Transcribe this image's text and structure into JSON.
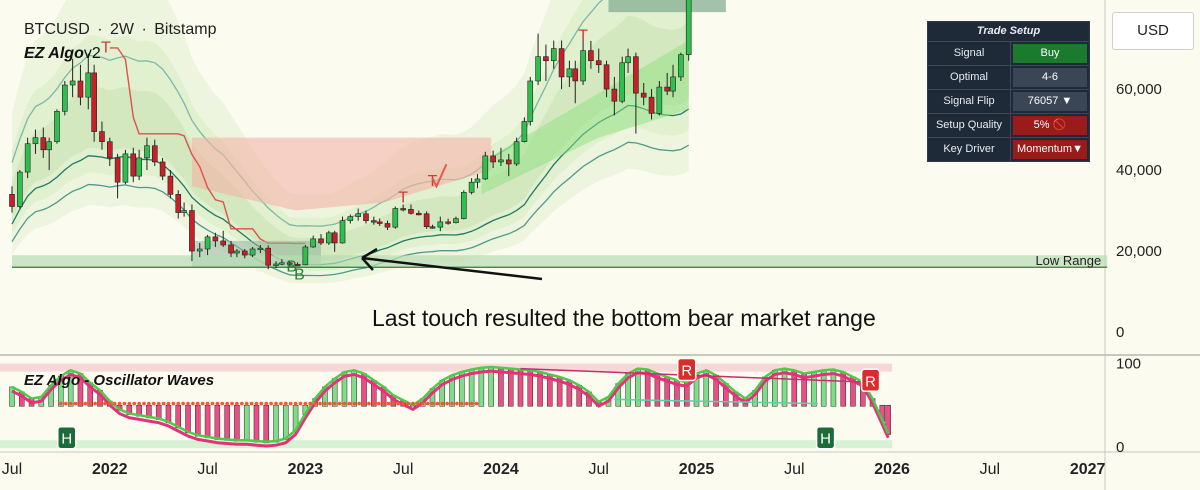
{
  "chart_data": {
    "type": "candlestick",
    "symbol": "BTCUSD",
    "interval": "2W",
    "exchange": "Bitstamp",
    "header_separator": "·",
    "indicator_name": "EZ Algo v2",
    "indicator_name_main": "EZ Algo",
    "indicator_name_suffix": "v2",
    "oscillator_title": "EZ Algo - Oscillator Waves",
    "currency_label": "USD",
    "price_axis": {
      "ticks": [
        0,
        20000,
        40000,
        60000
      ],
      "tick_labels": [
        "0",
        "20,000",
        "40,000",
        "60,000"
      ],
      "ylim": [
        0,
        82000
      ]
    },
    "osc_axis": {
      "ticks": [
        0,
        100
      ],
      "tick_labels": [
        "0",
        "100"
      ],
      "ylim": [
        -5,
        108
      ]
    },
    "time_axis": {
      "labels": [
        "Jul",
        "2022",
        "Jul",
        "2023",
        "Jul",
        "2024",
        "Jul",
        "2025",
        "Jul",
        "2026",
        "Jul",
        "2027"
      ],
      "positions": [
        2021.5,
        2022.0,
        2022.5,
        2023.0,
        2023.5,
        2024.0,
        2024.5,
        2025.0,
        2025.5,
        2026.0,
        2026.5,
        2027.0
      ],
      "xlim": [
        2021.5,
        2027.15
      ]
    },
    "low_range": {
      "label": "Low Range",
      "price": 16000,
      "x_start": 2021.5,
      "x_end": 2027.1
    },
    "annotation": {
      "text": "Last touch resulted the bottom bear market range"
    },
    "signals": [
      {
        "label": "B",
        "time": 2022.93,
        "price": 15000
      },
      {
        "label": "B",
        "time": 2022.97,
        "price": 13000
      },
      {
        "label": "T",
        "time": 2023.5,
        "price": 32000
      },
      {
        "label": "T",
        "time": 2023.65,
        "price": 36000
      },
      {
        "label": "T",
        "time": 2024.42,
        "price": 72000
      },
      {
        "label": "T",
        "time": 2021.98,
        "price": 69000
      }
    ],
    "osc_signals": [
      {
        "label": "H",
        "time": 2021.78,
        "value": 11
      },
      {
        "label": "H",
        "time": 2025.66,
        "value": 11
      },
      {
        "label": "R",
        "time": 2024.95,
        "value": 93
      },
      {
        "label": "R",
        "time": 2025.89,
        "value": 80
      }
    ],
    "trade_setup": {
      "title": "Trade Setup",
      "rows": [
        {
          "label": "Signal",
          "value": "Buy",
          "style": "buy"
        },
        {
          "label": "Optimal",
          "value": "4-6",
          "style": "dark"
        },
        {
          "label": "Signal Flip",
          "value": "76057 ▼",
          "style": "dark"
        },
        {
          "label": "Setup Quality",
          "value": "5% 🚫",
          "style": "red"
        },
        {
          "label": "Key Driver",
          "value": "Momentum▼",
          "style": "red"
        }
      ]
    },
    "candles": [
      {
        "t": 2021.5,
        "o": 34000,
        "h": 36000,
        "l": 29500,
        "c": 31000
      },
      {
        "t": 2021.54,
        "o": 31000,
        "h": 40000,
        "l": 30500,
        "c": 39500
      },
      {
        "t": 2021.58,
        "o": 39500,
        "h": 48000,
        "l": 38000,
        "c": 46500
      },
      {
        "t": 2021.62,
        "o": 46500,
        "h": 50000,
        "l": 44000,
        "c": 48000
      },
      {
        "t": 2021.66,
        "o": 48000,
        "h": 50500,
        "l": 43000,
        "c": 45000
      },
      {
        "t": 2021.69,
        "o": 45000,
        "h": 48000,
        "l": 40000,
        "c": 47000
      },
      {
        "t": 2021.73,
        "o": 47000,
        "h": 55000,
        "l": 46500,
        "c": 54500
      },
      {
        "t": 2021.77,
        "o": 54500,
        "h": 62000,
        "l": 53500,
        "c": 61000
      },
      {
        "t": 2021.81,
        "o": 61000,
        "h": 67500,
        "l": 58000,
        "c": 62000
      },
      {
        "t": 2021.85,
        "o": 62000,
        "h": 66000,
        "l": 56000,
        "c": 58000
      },
      {
        "t": 2021.89,
        "o": 58000,
        "h": 68800,
        "l": 55000,
        "c": 64000
      },
      {
        "t": 2021.92,
        "o": 64000,
        "h": 66000,
        "l": 47000,
        "c": 49500
      },
      {
        "t": 2021.96,
        "o": 49500,
        "h": 52000,
        "l": 45000,
        "c": 47000
      },
      {
        "t": 2022.0,
        "o": 47000,
        "h": 48000,
        "l": 41000,
        "c": 43000
      },
      {
        "t": 2022.04,
        "o": 43000,
        "h": 44000,
        "l": 33000,
        "c": 37000
      },
      {
        "t": 2022.08,
        "o": 37000,
        "h": 45000,
        "l": 36500,
        "c": 44000
      },
      {
        "t": 2022.12,
        "o": 44000,
        "h": 45500,
        "l": 37000,
        "c": 38500
      },
      {
        "t": 2022.15,
        "o": 38500,
        "h": 45000,
        "l": 37500,
        "c": 43000
      },
      {
        "t": 2022.19,
        "o": 43000,
        "h": 48000,
        "l": 40000,
        "c": 46000
      },
      {
        "t": 2022.23,
        "o": 46000,
        "h": 47500,
        "l": 41000,
        "c": 42000
      },
      {
        "t": 2022.27,
        "o": 42000,
        "h": 43000,
        "l": 37500,
        "c": 38500
      },
      {
        "t": 2022.31,
        "o": 38500,
        "h": 40000,
        "l": 33000,
        "c": 34000
      },
      {
        "t": 2022.35,
        "o": 34000,
        "h": 35000,
        "l": 28000,
        "c": 29500
      },
      {
        "t": 2022.38,
        "o": 29500,
        "h": 32000,
        "l": 28500,
        "c": 30000
      },
      {
        "t": 2022.42,
        "o": 30000,
        "h": 31500,
        "l": 17500,
        "c": 20000
      },
      {
        "t": 2022.46,
        "o": 20000,
        "h": 22000,
        "l": 18500,
        "c": 20500
      },
      {
        "t": 2022.5,
        "o": 20500,
        "h": 24000,
        "l": 19000,
        "c": 23500
      },
      {
        "t": 2022.54,
        "o": 23500,
        "h": 24500,
        "l": 21000,
        "c": 22500
      },
      {
        "t": 2022.58,
        "o": 22500,
        "h": 25000,
        "l": 21000,
        "c": 21500
      },
      {
        "t": 2022.62,
        "o": 21500,
        "h": 22500,
        "l": 18500,
        "c": 19500
      },
      {
        "t": 2022.65,
        "o": 19500,
        "h": 20500,
        "l": 18500,
        "c": 20000
      },
      {
        "t": 2022.69,
        "o": 20000,
        "h": 20500,
        "l": 18200,
        "c": 19000
      },
      {
        "t": 2022.73,
        "o": 19000,
        "h": 21000,
        "l": 18500,
        "c": 20500
      },
      {
        "t": 2022.77,
        "o": 20500,
        "h": 21500,
        "l": 19500,
        "c": 20700
      },
      {
        "t": 2022.81,
        "o": 20700,
        "h": 21400,
        "l": 15500,
        "c": 16500
      },
      {
        "t": 2022.85,
        "o": 16500,
        "h": 17500,
        "l": 15800,
        "c": 16800
      },
      {
        "t": 2022.88,
        "o": 16800,
        "h": 18000,
        "l": 16500,
        "c": 17100
      },
      {
        "t": 2022.92,
        "o": 17100,
        "h": 17500,
        "l": 16300,
        "c": 16700
      },
      {
        "t": 2022.96,
        "o": 16700,
        "h": 17200,
        "l": 16400,
        "c": 16600
      },
      {
        "t": 2023.0,
        "o": 16600,
        "h": 21500,
        "l": 16500,
        "c": 21000
      },
      {
        "t": 2023.04,
        "o": 21000,
        "h": 23800,
        "l": 20800,
        "c": 23000
      },
      {
        "t": 2023.08,
        "o": 23000,
        "h": 24200,
        "l": 21500,
        "c": 22000
      },
      {
        "t": 2023.12,
        "o": 22000,
        "h": 25000,
        "l": 21500,
        "c": 24500
      },
      {
        "t": 2023.15,
        "o": 24500,
        "h": 25000,
        "l": 19800,
        "c": 22000
      },
      {
        "t": 2023.19,
        "o": 22000,
        "h": 28500,
        "l": 21800,
        "c": 27500
      },
      {
        "t": 2023.23,
        "o": 27500,
        "h": 29000,
        "l": 26800,
        "c": 28500
      },
      {
        "t": 2023.27,
        "o": 28500,
        "h": 30500,
        "l": 27500,
        "c": 29200
      },
      {
        "t": 2023.31,
        "o": 29200,
        "h": 30000,
        "l": 26800,
        "c": 27500
      },
      {
        "t": 2023.35,
        "o": 27500,
        "h": 28500,
        "l": 26500,
        "c": 27200
      },
      {
        "t": 2023.38,
        "o": 27200,
        "h": 28000,
        "l": 26200,
        "c": 26800
      },
      {
        "t": 2023.42,
        "o": 26800,
        "h": 27500,
        "l": 25200,
        "c": 25900
      },
      {
        "t": 2023.46,
        "o": 25900,
        "h": 31000,
        "l": 25500,
        "c": 30500
      },
      {
        "t": 2023.5,
        "o": 30500,
        "h": 31500,
        "l": 29800,
        "c": 30300
      },
      {
        "t": 2023.54,
        "o": 30300,
        "h": 31500,
        "l": 29000,
        "c": 29300
      },
      {
        "t": 2023.58,
        "o": 29300,
        "h": 30000,
        "l": 28800,
        "c": 29200
      },
      {
        "t": 2023.62,
        "o": 29200,
        "h": 29800,
        "l": 25500,
        "c": 26000
      },
      {
        "t": 2023.65,
        "o": 26000,
        "h": 26500,
        "l": 25500,
        "c": 25900
      },
      {
        "t": 2023.69,
        "o": 25900,
        "h": 28500,
        "l": 24900,
        "c": 27200
      },
      {
        "t": 2023.73,
        "o": 27200,
        "h": 28000,
        "l": 26500,
        "c": 27000
      },
      {
        "t": 2023.77,
        "o": 27000,
        "h": 28500,
        "l": 26800,
        "c": 28000
      },
      {
        "t": 2023.81,
        "o": 28000,
        "h": 35000,
        "l": 27800,
        "c": 34500
      },
      {
        "t": 2023.85,
        "o": 34500,
        "h": 38000,
        "l": 34000,
        "c": 37000
      },
      {
        "t": 2023.88,
        "o": 37000,
        "h": 39000,
        "l": 35500,
        "c": 37800
      },
      {
        "t": 2023.92,
        "o": 37800,
        "h": 44500,
        "l": 37500,
        "c": 43500
      },
      {
        "t": 2023.96,
        "o": 43500,
        "h": 44800,
        "l": 40500,
        "c": 42000
      },
      {
        "t": 2024.0,
        "o": 42000,
        "h": 45500,
        "l": 41000,
        "c": 42500
      },
      {
        "t": 2024.04,
        "o": 42500,
        "h": 44000,
        "l": 38500,
        "c": 41500
      },
      {
        "t": 2024.08,
        "o": 41500,
        "h": 48000,
        "l": 41000,
        "c": 47000
      },
      {
        "t": 2024.12,
        "o": 47000,
        "h": 53000,
        "l": 46800,
        "c": 52000
      },
      {
        "t": 2024.15,
        "o": 52000,
        "h": 63000,
        "l": 51000,
        "c": 62000
      },
      {
        "t": 2024.19,
        "o": 62000,
        "h": 73700,
        "l": 61000,
        "c": 68000
      },
      {
        "t": 2024.23,
        "o": 68000,
        "h": 71000,
        "l": 62000,
        "c": 67000
      },
      {
        "t": 2024.27,
        "o": 67000,
        "h": 72000,
        "l": 65000,
        "c": 70000
      },
      {
        "t": 2024.31,
        "o": 70000,
        "h": 72000,
        "l": 60000,
        "c": 63000
      },
      {
        "t": 2024.35,
        "o": 63000,
        "h": 67000,
        "l": 60500,
        "c": 65000
      },
      {
        "t": 2024.38,
        "o": 65000,
        "h": 67000,
        "l": 56500,
        "c": 62000
      },
      {
        "t": 2024.42,
        "o": 62000,
        "h": 72000,
        "l": 61000,
        "c": 69500
      },
      {
        "t": 2024.46,
        "o": 69500,
        "h": 71900,
        "l": 65000,
        "c": 67000
      },
      {
        "t": 2024.5,
        "o": 67000,
        "h": 70000,
        "l": 64000,
        "c": 66000
      },
      {
        "t": 2024.54,
        "o": 66000,
        "h": 67000,
        "l": 58000,
        "c": 60000
      },
      {
        "t": 2024.58,
        "o": 60000,
        "h": 63000,
        "l": 53500,
        "c": 57000
      },
      {
        "t": 2024.62,
        "o": 57000,
        "h": 68000,
        "l": 56500,
        "c": 66500
      },
      {
        "t": 2024.65,
        "o": 66500,
        "h": 70000,
        "l": 64000,
        "c": 68000
      },
      {
        "t": 2024.69,
        "o": 68000,
        "h": 69000,
        "l": 49000,
        "c": 59000
      },
      {
        "t": 2024.73,
        "o": 59000,
        "h": 61500,
        "l": 56000,
        "c": 58000
      },
      {
        "t": 2024.77,
        "o": 58000,
        "h": 60000,
        "l": 52500,
        "c": 54000
      },
      {
        "t": 2024.81,
        "o": 54000,
        "h": 62000,
        "l": 53500,
        "c": 60500
      },
      {
        "t": 2024.85,
        "o": 60500,
        "h": 64000,
        "l": 58500,
        "c": 59500
      },
      {
        "t": 2024.88,
        "o": 59500,
        "h": 66000,
        "l": 58000,
        "c": 63000
      },
      {
        "t": 2024.92,
        "o": 63000,
        "h": 69000,
        "l": 62000,
        "c": 68500
      },
      {
        "t": 2024.96,
        "o": 68500,
        "h": 92000,
        "l": 67000,
        "c": 90000
      }
    ],
    "osc_line": [
      [
        2021.5,
        72
      ],
      [
        2021.55,
        66
      ],
      [
        2021.6,
        58
      ],
      [
        2021.65,
        60
      ],
      [
        2021.7,
        74
      ],
      [
        2021.75,
        85
      ],
      [
        2021.8,
        92
      ],
      [
        2021.85,
        88
      ],
      [
        2021.9,
        77
      ],
      [
        2021.95,
        68
      ],
      [
        2022.0,
        55
      ],
      [
        2022.05,
        45
      ],
      [
        2022.1,
        40
      ],
      [
        2022.15,
        38
      ],
      [
        2022.2,
        36
      ],
      [
        2022.25,
        34
      ],
      [
        2022.3,
        30
      ],
      [
        2022.35,
        24
      ],
      [
        2022.4,
        18
      ],
      [
        2022.45,
        14
      ],
      [
        2022.5,
        12
      ],
      [
        2022.55,
        10
      ],
      [
        2022.6,
        9
      ],
      [
        2022.65,
        8
      ],
      [
        2022.7,
        8
      ],
      [
        2022.75,
        7
      ],
      [
        2022.8,
        6
      ],
      [
        2022.85,
        7
      ],
      [
        2022.9,
        10
      ],
      [
        2022.95,
        20
      ],
      [
        2023.0,
        40
      ],
      [
        2023.05,
        58
      ],
      [
        2023.1,
        72
      ],
      [
        2023.15,
        82
      ],
      [
        2023.2,
        90
      ],
      [
        2023.25,
        92
      ],
      [
        2023.3,
        88
      ],
      [
        2023.35,
        80
      ],
      [
        2023.4,
        72
      ],
      [
        2023.45,
        62
      ],
      [
        2023.5,
        56
      ],
      [
        2023.55,
        50
      ],
      [
        2023.6,
        58
      ],
      [
        2023.65,
        70
      ],
      [
        2023.7,
        80
      ],
      [
        2023.75,
        86
      ],
      [
        2023.8,
        90
      ],
      [
        2023.85,
        93
      ],
      [
        2023.9,
        95
      ],
      [
        2023.95,
        96
      ],
      [
        2024.0,
        95
      ],
      [
        2024.05,
        94
      ],
      [
        2024.1,
        93
      ],
      [
        2024.15,
        92
      ],
      [
        2024.2,
        90
      ],
      [
        2024.25,
        87
      ],
      [
        2024.3,
        84
      ],
      [
        2024.35,
        80
      ],
      [
        2024.4,
        74
      ],
      [
        2024.45,
        66
      ],
      [
        2024.5,
        54
      ],
      [
        2024.55,
        60
      ],
      [
        2024.6,
        76
      ],
      [
        2024.65,
        88
      ],
      [
        2024.7,
        94
      ],
      [
        2024.75,
        93
      ],
      [
        2024.8,
        88
      ],
      [
        2024.85,
        84
      ],
      [
        2024.9,
        80
      ],
      [
        2024.95,
        78
      ],
      [
        2025.0,
        88
      ],
      [
        2025.05,
        92
      ],
      [
        2025.1,
        86
      ],
      [
        2025.15,
        76
      ],
      [
        2025.2,
        66
      ],
      [
        2025.25,
        58
      ],
      [
        2025.3,
        68
      ],
      [
        2025.35,
        84
      ],
      [
        2025.4,
        92
      ],
      [
        2025.45,
        94
      ],
      [
        2025.5,
        92
      ],
      [
        2025.55,
        88
      ],
      [
        2025.6,
        90
      ],
      [
        2025.65,
        92
      ],
      [
        2025.7,
        93
      ],
      [
        2025.75,
        90
      ],
      [
        2025.8,
        84
      ],
      [
        2025.85,
        78
      ],
      [
        2025.9,
        58
      ],
      [
        2025.95,
        32
      ],
      [
        2025.98,
        16
      ]
    ],
    "osc_dots": {
      "time_start": 2021.75,
      "time_end": 2023.9,
      "value": 52
    }
  }
}
